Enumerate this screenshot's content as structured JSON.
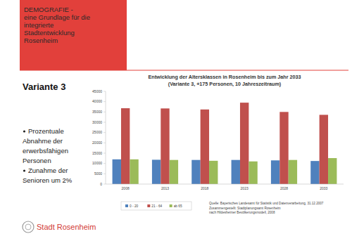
{
  "slide": {
    "header": [
      "DEMOGRAFIE -",
      "eine Grundlage für die",
      "integrierte",
      "Stadtentwicklung",
      "Rosenheim"
    ],
    "heading": "Variante 3",
    "bullets": [
      [
        "Prozentuale",
        "Abnahme der",
        "erwerbsfähigen",
        "Personen"
      ],
      [
        "Zunahme der",
        "Senioren um 2%"
      ]
    ],
    "logo": "Stadt Rosenheim"
  },
  "chart_data": {
    "type": "bar",
    "title": "Entwicklung der Altersklassen in Rosenheim bis zum Jahr 2033",
    "subtitle": "(Variante 3, +175 Personen, 10 Jahreszeitraum)",
    "categories": [
      "2008",
      "2013",
      "2018",
      "2023",
      "2028",
      "2033"
    ],
    "series": [
      {
        "name": "0 - 20",
        "color": "#4f81bd",
        "values": [
          12000,
          11800,
          11700,
          11700,
          11500,
          11200
        ]
      },
      {
        "name": "21 - 64",
        "color": "#c0504d",
        "values": [
          36800,
          36700,
          36200,
          39500,
          35000,
          33600
        ]
      },
      {
        "name": "ab 65",
        "color": "#9bbb59",
        "values": [
          12000,
          11700,
          11300,
          11000,
          11700,
          12600
        ]
      }
    ],
    "ylim": [
      0,
      45000
    ],
    "yticks": [
      0,
      5000,
      10000,
      15000,
      20000,
      25000,
      30000,
      35000,
      40000,
      45000
    ],
    "grid": false,
    "legend": "bottom",
    "annotations": [
      "Quelle: Bayerisches Landesamt für Statistik und Datenverarbeitung, 31.12.2007",
      "Zusammengestellt: Stadtplanungsamt Rosenheim",
      "nach Hildesheimer Bevölkerungsmodell, 2008"
    ]
  }
}
